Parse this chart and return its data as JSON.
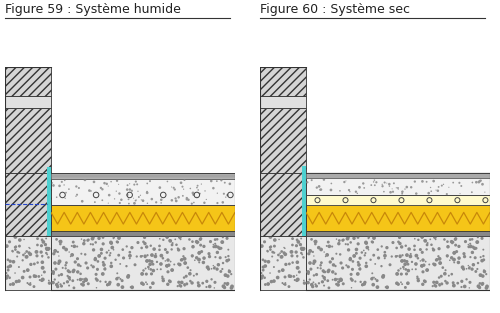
{
  "title1": "Figure 59 : Système humide",
  "title2": "Figure 60 : Système sec",
  "bg_color": "#ffffff",
  "title_fontsize": 9,
  "colors": {
    "hatch_wall": "#d0d0d0",
    "concrete_bg": "#e0e0e0",
    "insulation": "#f5c518",
    "cyan_strip": "#4dd0d0",
    "membrane": "#aaaaaa",
    "screed": "#f0f0f0",
    "light_panel": "#fffacc",
    "damp": "#666666"
  }
}
